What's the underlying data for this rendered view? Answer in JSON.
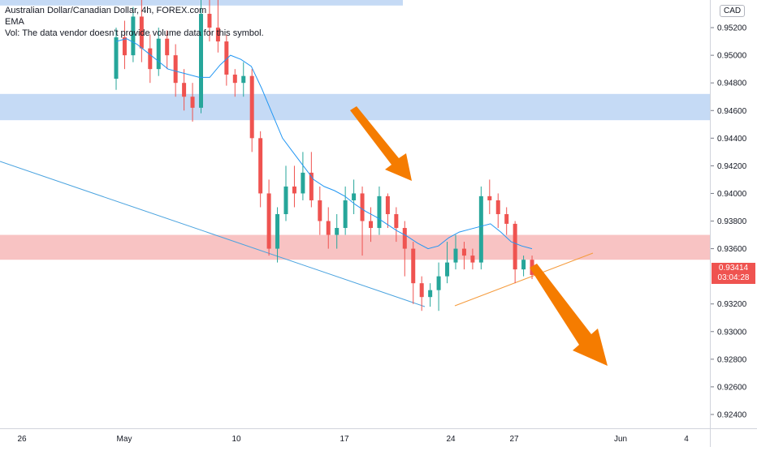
{
  "legend": {
    "symbol": "Australian Dollar/Canadian Dollar, 4h, FOREX.com",
    "ema": "EMA",
    "vol": "Vol: The data vendor doesn't provide volume data for this symbol."
  },
  "currency_badge": "CAD",
  "last_price": {
    "value": "0.93414",
    "countdown": "03:04:28"
  },
  "colors": {
    "up": "#26a69a",
    "down": "#ef5350",
    "ema": "#2196f3",
    "supply_zone": "#bbd3f3",
    "demand_zone": "#f7b8b8",
    "arrow": "#f57c00",
    "trendline_blue": "#4aa3df",
    "trendline_orange": "#f59b3c"
  },
  "chart_data": {
    "type": "candlestick",
    "y_axis": {
      "range": [
        0.923,
        0.954
      ],
      "ticks": [
        "0.95200",
        "0.95000",
        "0.94800",
        "0.94600",
        "0.94400",
        "0.94200",
        "0.94000",
        "0.93800",
        "0.93600",
        "0.93200",
        "0.93000",
        "0.92800",
        "0.92600",
        "0.92400"
      ]
    },
    "x_axis": {
      "labels": [
        "26",
        "May",
        "10",
        "17",
        "24",
        "27",
        "Jun",
        "4"
      ]
    },
    "zones": [
      {
        "kind": "resistance",
        "from": 0.9453,
        "to": 0.9472
      },
      {
        "kind": "support",
        "from": 0.9352,
        "to": 0.937
      },
      {
        "kind": "top",
        "from": 0.9536,
        "to": 0.9545
      }
    ],
    "ema_series": [
      0.951,
      0.9512,
      0.9508,
      0.9502,
      0.9496,
      0.949,
      0.9488,
      0.9486,
      0.9484,
      0.9484,
      0.9493,
      0.95,
      0.9497,
      0.9492,
      0.9476,
      0.9458,
      0.944,
      0.943,
      0.942,
      0.941,
      0.9405,
      0.9402,
      0.9398,
      0.9392,
      0.9387,
      0.9383,
      0.9378,
      0.9373,
      0.9369,
      0.9364,
      0.936,
      0.9362,
      0.9368,
      0.9372,
      0.9374,
      0.9376,
      0.9378,
      0.9372,
      0.9365,
      0.9362,
      0.936
    ],
    "candles": [
      [
        0.9483,
        0.9513,
        0.952,
        0.9475
      ],
      [
        0.9513,
        0.95,
        0.9525,
        0.949
      ],
      [
        0.95,
        0.9528,
        0.9535,
        0.9495
      ],
      [
        0.9528,
        0.9505,
        0.954,
        0.9495
      ],
      [
        0.9505,
        0.949,
        0.9515,
        0.948
      ],
      [
        0.949,
        0.9512,
        0.952,
        0.9485
      ],
      [
        0.9512,
        0.95,
        0.9518,
        0.949
      ],
      [
        0.95,
        0.948,
        0.9508,
        0.947
      ],
      [
        0.948,
        0.947,
        0.949,
        0.946
      ],
      [
        0.947,
        0.9462,
        0.948,
        0.9452
      ],
      [
        0.9462,
        0.953,
        0.9545,
        0.9458
      ],
      [
        0.953,
        0.952,
        0.9545,
        0.951
      ],
      [
        0.952,
        0.951,
        0.9545,
        0.9502
      ],
      [
        0.951,
        0.9486,
        0.9515,
        0.9478
      ],
      [
        0.9486,
        0.948,
        0.949,
        0.947
      ],
      [
        0.948,
        0.9485,
        0.9495,
        0.947
      ],
      [
        0.9485,
        0.944,
        0.949,
        0.943
      ],
      [
        0.944,
        0.94,
        0.9445,
        0.939
      ],
      [
        0.94,
        0.936,
        0.941,
        0.9355
      ],
      [
        0.936,
        0.9385,
        0.939,
        0.935
      ],
      [
        0.9385,
        0.9405,
        0.942,
        0.938
      ],
      [
        0.9405,
        0.94,
        0.942,
        0.939
      ],
      [
        0.94,
        0.9415,
        0.943,
        0.9395
      ],
      [
        0.9415,
        0.9395,
        0.943,
        0.939
      ],
      [
        0.9395,
        0.938,
        0.9405,
        0.937
      ],
      [
        0.938,
        0.937,
        0.939,
        0.936
      ],
      [
        0.937,
        0.9375,
        0.9385,
        0.936
      ],
      [
        0.9375,
        0.9395,
        0.9405,
        0.937
      ],
      [
        0.9395,
        0.94,
        0.941,
        0.9385
      ],
      [
        0.94,
        0.938,
        0.9405,
        0.9355
      ],
      [
        0.938,
        0.9375,
        0.939,
        0.9365
      ],
      [
        0.9375,
        0.9398,
        0.9405,
        0.937
      ],
      [
        0.9398,
        0.9385,
        0.94,
        0.9375
      ],
      [
        0.9385,
        0.9375,
        0.939,
        0.9365
      ],
      [
        0.9375,
        0.936,
        0.938,
        0.934
      ],
      [
        0.936,
        0.9335,
        0.9365,
        0.932
      ],
      [
        0.9335,
        0.9325,
        0.934,
        0.9315
      ],
      [
        0.9325,
        0.933,
        0.9335,
        0.9318
      ],
      [
        0.933,
        0.934,
        0.935,
        0.9315
      ],
      [
        0.934,
        0.935,
        0.9365,
        0.9335
      ],
      [
        0.935,
        0.936,
        0.937,
        0.9345
      ],
      [
        0.936,
        0.9355,
        0.9365,
        0.9345
      ],
      [
        0.9355,
        0.935,
        0.936,
        0.9345
      ],
      [
        0.935,
        0.9398,
        0.9405,
        0.9345
      ],
      [
        0.9398,
        0.9395,
        0.941,
        0.9385
      ],
      [
        0.9395,
        0.9385,
        0.94,
        0.9375
      ],
      [
        0.9385,
        0.9378,
        0.939,
        0.937
      ],
      [
        0.9378,
        0.9345,
        0.938,
        0.9335
      ],
      [
        0.9345,
        0.9352,
        0.9355,
        0.934
      ],
      [
        0.9352,
        0.9341,
        0.9355,
        0.9338
      ]
    ]
  }
}
